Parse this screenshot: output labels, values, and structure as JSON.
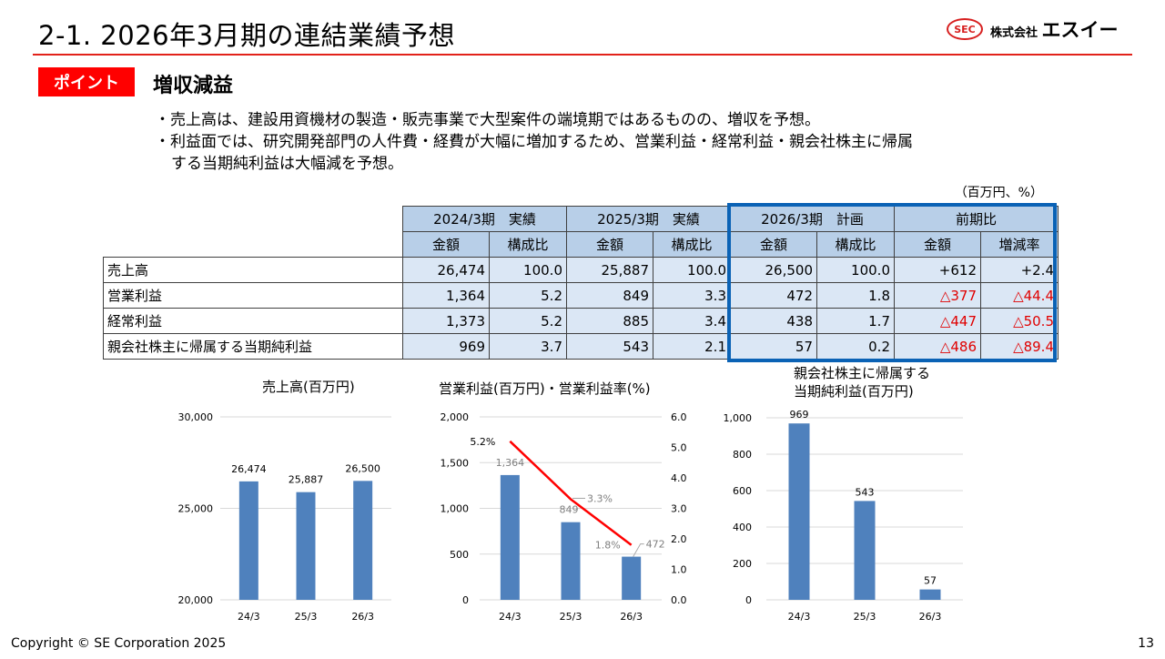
{
  "header": {
    "title": "2-1. 2026年3月期の連結業績予想",
    "logo_mark": "SEC",
    "logo_small": "株式会社",
    "logo_big": "エスイー"
  },
  "point": {
    "badge": "ポイント",
    "heading": "増収減益",
    "bullets": [
      "・売上高は、建設用資機材の製造・販売事業で大型案件の端境期ではあるものの、増収を予想。",
      "・利益面では、研究開発部門の人件費・経費が大幅に増加するため、営業利益・経常利益・親会社株主に帰属",
      "する当期純利益は大幅減を予想。"
    ]
  },
  "table": {
    "unit_note": "（百万円、%）",
    "group_headers": [
      "2024/3期　実績",
      "2025/3期　実績",
      "2026/3期　計画",
      "前期比"
    ],
    "sub_headers": [
      "金額",
      "構成比",
      "金額",
      "構成比",
      "金額",
      "構成比",
      "金額",
      "増減率"
    ],
    "rows": [
      {
        "label": "売上高",
        "cells": [
          "26,474",
          "100.0",
          "25,887",
          "100.0",
          "26,500",
          "100.0",
          "+612",
          "+2.4"
        ]
      },
      {
        "label": "営業利益",
        "cells": [
          "1,364",
          "5.2",
          "849",
          "3.3",
          "472",
          "1.8",
          "△377",
          "△44.4"
        ]
      },
      {
        "label": "経常利益",
        "cells": [
          "1,373",
          "5.2",
          "885",
          "3.4",
          "438",
          "1.7",
          "△447",
          "△50.5"
        ]
      },
      {
        "label": "親会社株主に帰属する当期純利益",
        "cells": [
          "969",
          "3.7",
          "543",
          "2.1",
          "57",
          "0.2",
          "△486",
          "△89.4"
        ]
      }
    ]
  },
  "colors": {
    "bar": "#4f81bd",
    "line": "#ff0000",
    "accent": "#e2221a",
    "plan_box": "#0a62b5",
    "negative": "#e00000"
  },
  "chart_data": [
    {
      "type": "bar",
      "title": "売上高(百万円)",
      "categories": [
        "24/3",
        "25/3",
        "26/3"
      ],
      "values": [
        26474,
        25887,
        26500
      ],
      "value_labels": [
        "26,474",
        "25,887",
        "26,500"
      ],
      "ylim": [
        20000,
        30000
      ],
      "yticks": [
        "20,000",
        "25,000",
        "30,000"
      ],
      "ytick_values": [
        20000,
        25000,
        30000
      ]
    },
    {
      "type": "bar+line",
      "title": "営業利益(百万円)・営業利益率(%)",
      "categories": [
        "24/3",
        "25/3",
        "26/3"
      ],
      "series": [
        {
          "values": [
            1364,
            849,
            472
          ],
          "labels": [
            "1,364",
            "849",
            "472"
          ],
          "axis": "left"
        },
        {
          "values": [
            5.2,
            3.3,
            1.8
          ],
          "labels": [
            "5.2%",
            "3.3%",
            "1.8%"
          ],
          "axis": "right"
        }
      ],
      "ylim": [
        0,
        2000
      ],
      "yticks": [
        "0",
        "500",
        "1,000",
        "1,500",
        "2,000"
      ],
      "ytick_values": [
        0,
        500,
        1000,
        1500,
        2000
      ],
      "y2lim": [
        0,
        6
      ],
      "y2ticks": [
        "0.0",
        "1.0",
        "2.0",
        "3.0",
        "4.0",
        "5.0",
        "6.0"
      ],
      "y2tick_values": [
        0,
        1,
        2,
        3,
        4,
        5,
        6
      ]
    },
    {
      "type": "bar",
      "title": "親会社株主に帰属する\n当期純利益(百万円)",
      "title_lines": [
        "親会社株主に帰属する",
        "当期純利益(百万円)"
      ],
      "categories": [
        "24/3",
        "25/3",
        "26/3"
      ],
      "values": [
        969,
        543,
        57
      ],
      "value_labels": [
        "969",
        "543",
        "57"
      ],
      "ylim": [
        0,
        1000
      ],
      "yticks": [
        "0",
        "200",
        "400",
        "600",
        "800",
        "1,000"
      ],
      "ytick_values": [
        0,
        200,
        400,
        600,
        800,
        1000
      ]
    }
  ],
  "footer": {
    "copyright": "Copyright © SE Corporation 2025",
    "page": "13"
  }
}
